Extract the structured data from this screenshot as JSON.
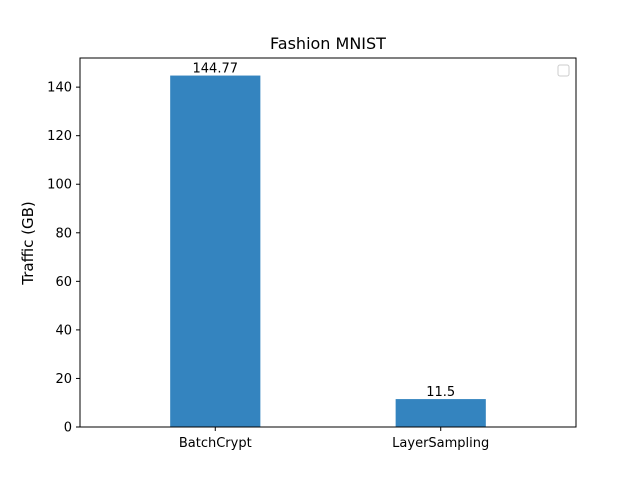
{
  "chart_data": {
    "type": "bar",
    "title": "Fashion MNIST",
    "xlabel": "",
    "ylabel": "Traffic (GB)",
    "categories": [
      "BatchCrypt",
      "LayerSampling"
    ],
    "values": [
      144.77,
      11.5
    ],
    "data_labels": [
      "144.77",
      "11.5"
    ],
    "ylim": [
      0,
      152
    ],
    "yticks": [
      0,
      20,
      40,
      60,
      80,
      100,
      120,
      140
    ],
    "grid": false,
    "legend": {
      "placement": "top-right",
      "entries": []
    },
    "colors": {
      "bar": "#3484bf",
      "axis": "#000000"
    }
  }
}
